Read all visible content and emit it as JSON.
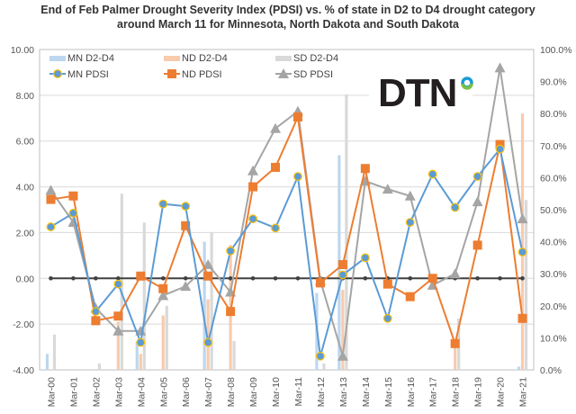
{
  "chart_data": {
    "type": "bar+line",
    "title": "End of Feb Palmer Drought Severity Index (PDSI) vs. % of state in D2 to D4 drought category around March 11 for Minnesota, North Dakota and South Dakota",
    "categories": [
      "Mar-00",
      "Mar-01",
      "Mar-02",
      "Mar-03",
      "Mar-04",
      "Mar-05",
      "Mar-06",
      "Mar-07",
      "Mar-08",
      "Mar-09",
      "Mar-10",
      "Mar-11",
      "Mar-12",
      "Mar-13",
      "Mar-14",
      "Mar-15",
      "Mar-16",
      "Mar-17",
      "Mar-18",
      "Mar-19",
      "Mar-20",
      "Mar-21"
    ],
    "y_left": {
      "ylim": [
        -4,
        10
      ],
      "ticks": [
        "-4.00",
        "-2.00",
        "0.00",
        "2.00",
        "4.00",
        "6.00",
        "8.00",
        "10.00"
      ]
    },
    "y_right": {
      "ylim": [
        0,
        100
      ],
      "ticks": [
        "0.0%",
        "10.0%",
        "20.0%",
        "30.0%",
        "40.0%",
        "50.0%",
        "60.0%",
        "70.0%",
        "80.0%",
        "90.0%",
        "100.0%"
      ]
    },
    "grid": true,
    "legend_position": "top-left",
    "bar_series": [
      {
        "name": "MN D2-D4",
        "color": "#bdd7ee",
        "values": [
          5,
          0,
          0,
          0,
          9,
          0,
          0,
          40,
          0,
          0,
          0,
          0,
          24,
          67,
          0,
          0,
          0,
          0,
          0,
          0,
          0,
          1
        ]
      },
      {
        "name": "ND   D2-D4",
        "color": "#f8cbad",
        "values": [
          0,
          0,
          0,
          15,
          5,
          17,
          0,
          22,
          39,
          0,
          0,
          0,
          0,
          25,
          0,
          0,
          0,
          0,
          8,
          0,
          0,
          80
        ]
      },
      {
        "name": "SD D2-D4",
        "color": "#d9d9d9",
        "values": [
          11,
          0,
          2,
          55,
          46,
          20,
          0,
          43,
          9,
          0,
          0,
          0,
          2,
          86,
          0,
          0,
          0,
          0,
          16,
          0,
          0,
          53
        ]
      }
    ],
    "line_series": [
      {
        "name": "MN PDSI",
        "color": "#5b9bd5",
        "marker": "circle",
        "values": [
          2.25,
          2.85,
          -1.45,
          -0.25,
          -2.8,
          3.25,
          3.15,
          -2.8,
          1.2,
          2.6,
          2.2,
          4.45,
          -3.4,
          0.15,
          0.9,
          -1.75,
          2.45,
          4.55,
          3.1,
          4.45,
          5.65,
          1.15
        ]
      },
      {
        "name": "ND PDSI",
        "color": "#ed7d31",
        "marker": "square",
        "values": [
          3.45,
          3.6,
          -1.85,
          -1.65,
          0.1,
          -0.45,
          2.3,
          0.1,
          -1.45,
          4.0,
          4.85,
          7.05,
          -0.2,
          0.6,
          4.8,
          -0.25,
          -0.8,
          0.0,
          -2.85,
          1.45,
          5.85,
          -1.75
        ]
      },
      {
        "name": "SD PDSI",
        "color": "#a5a5a5",
        "marker": "triangle",
        "values": [
          3.85,
          2.45,
          -1.3,
          -2.3,
          -2.3,
          -0.75,
          -0.35,
          0.6,
          -0.6,
          4.7,
          6.55,
          7.3,
          -0.1,
          -3.4,
          4.25,
          3.9,
          3.6,
          -0.3,
          0.2,
          3.35,
          9.2,
          2.6
        ]
      }
    ],
    "zero_line": {
      "color": "#404040",
      "values": [
        0,
        0,
        0,
        0,
        0,
        0,
        0,
        0,
        0,
        0,
        0,
        0,
        0,
        0,
        0,
        0,
        0,
        0,
        0,
        0,
        0,
        0
      ]
    },
    "logo": "DTN"
  }
}
